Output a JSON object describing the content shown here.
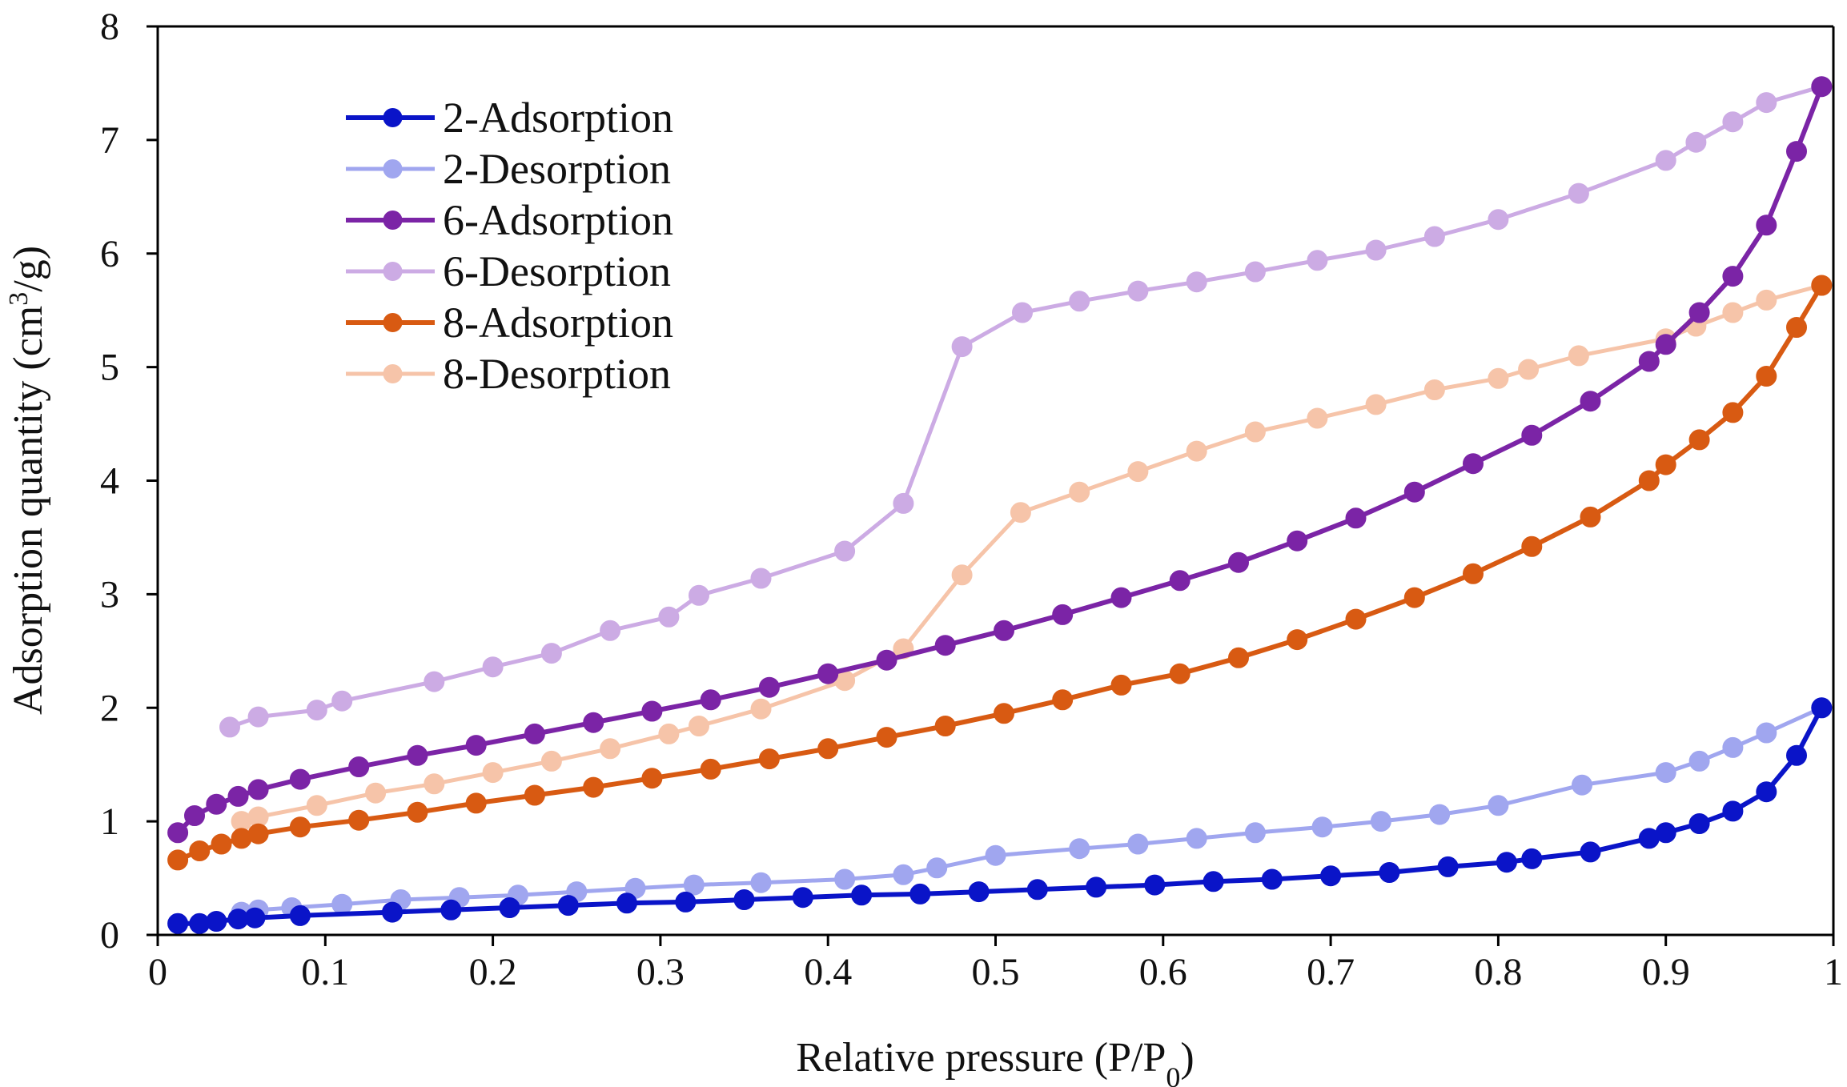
{
  "chart_data": {
    "type": "line",
    "xlabel": "Relative pressure (P/P",
    "xlabel_sub": "0",
    "xlabel_end": ")",
    "ylabel": "Adsorption quantity (cm",
    "ylabel_sup": "3",
    "ylabel_end": "/g)",
    "xlim": [
      0,
      1
    ],
    "ylim": [
      0,
      8
    ],
    "x_ticks": [
      "0",
      "0.1",
      "0.2",
      "0.3",
      "0.4",
      "0.5",
      "0.6",
      "0.7",
      "0.8",
      "0.9",
      "1"
    ],
    "y_ticks": [
      "0",
      "1",
      "2",
      "3",
      "4",
      "5",
      "6",
      "7",
      "8"
    ],
    "grid": false,
    "legend_position": "top-left",
    "series": [
      {
        "name": "2-Adsorption",
        "color": "#0a14c8",
        "style": "solid",
        "x": [
          0.012,
          0.025,
          0.035,
          0.048,
          0.058,
          0.085,
          0.14,
          0.175,
          0.21,
          0.245,
          0.28,
          0.315,
          0.35,
          0.385,
          0.42,
          0.455,
          0.49,
          0.525,
          0.56,
          0.595,
          0.63,
          0.665,
          0.7,
          0.735,
          0.77,
          0.805,
          0.82,
          0.855,
          0.89,
          0.9,
          0.92,
          0.94,
          0.96,
          0.978,
          0.993
        ],
        "y": [
          0.1,
          0.1,
          0.12,
          0.14,
          0.15,
          0.17,
          0.2,
          0.22,
          0.24,
          0.26,
          0.28,
          0.29,
          0.31,
          0.33,
          0.35,
          0.36,
          0.38,
          0.4,
          0.42,
          0.44,
          0.47,
          0.49,
          0.52,
          0.55,
          0.6,
          0.64,
          0.67,
          0.73,
          0.85,
          0.9,
          0.98,
          1.09,
          1.26,
          1.58,
          2.0
        ]
      },
      {
        "name": "2-Desorption",
        "color": "#6e78e8",
        "style": "faded",
        "x": [
          0.993,
          0.96,
          0.94,
          0.92,
          0.9,
          0.85,
          0.8,
          0.765,
          0.73,
          0.695,
          0.655,
          0.62,
          0.585,
          0.55,
          0.5,
          0.465,
          0.445,
          0.41,
          0.36,
          0.32,
          0.285,
          0.25,
          0.215,
          0.18,
          0.145,
          0.11,
          0.08,
          0.06,
          0.05
        ],
        "y": [
          2.0,
          1.78,
          1.65,
          1.53,
          1.43,
          1.32,
          1.14,
          1.06,
          1.0,
          0.95,
          0.9,
          0.85,
          0.8,
          0.76,
          0.7,
          0.59,
          0.53,
          0.49,
          0.46,
          0.44,
          0.41,
          0.38,
          0.35,
          0.33,
          0.31,
          0.27,
          0.24,
          0.22,
          0.2
        ]
      },
      {
        "name": "6-Adsorption",
        "color": "#7b24a6",
        "style": "solid",
        "x": [
          0.012,
          0.022,
          0.035,
          0.048,
          0.06,
          0.085,
          0.12,
          0.155,
          0.19,
          0.225,
          0.26,
          0.295,
          0.33,
          0.365,
          0.4,
          0.435,
          0.47,
          0.505,
          0.54,
          0.575,
          0.61,
          0.645,
          0.68,
          0.715,
          0.75,
          0.785,
          0.82,
          0.855,
          0.89,
          0.9,
          0.92,
          0.94,
          0.96,
          0.978,
          0.993
        ],
        "y": [
          0.9,
          1.05,
          1.15,
          1.22,
          1.28,
          1.37,
          1.48,
          1.58,
          1.67,
          1.77,
          1.87,
          1.97,
          2.07,
          2.18,
          2.3,
          2.42,
          2.55,
          2.68,
          2.82,
          2.97,
          3.12,
          3.28,
          3.47,
          3.67,
          3.9,
          4.15,
          4.4,
          4.7,
          5.05,
          5.2,
          5.48,
          5.8,
          6.25,
          6.9,
          7.47
        ]
      },
      {
        "name": "6-Desorption",
        "color": "#b27fd6",
        "style": "faded",
        "x": [
          0.993,
          0.96,
          0.94,
          0.918,
          0.9,
          0.848,
          0.8,
          0.762,
          0.727,
          0.692,
          0.655,
          0.62,
          0.585,
          0.55,
          0.516,
          0.48,
          0.445,
          0.41,
          0.36,
          0.323,
          0.305,
          0.27,
          0.235,
          0.2,
          0.165,
          0.11,
          0.095,
          0.06,
          0.043
        ],
        "y": [
          7.47,
          7.33,
          7.16,
          6.98,
          6.82,
          6.53,
          6.3,
          6.15,
          6.03,
          5.94,
          5.84,
          5.75,
          5.67,
          5.58,
          5.48,
          5.18,
          3.8,
          3.38,
          3.14,
          2.99,
          2.8,
          2.68,
          2.48,
          2.36,
          2.23,
          2.06,
          1.98,
          1.92,
          1.83
        ]
      },
      {
        "name": "8-Adsorption",
        "color": "#d85a12",
        "style": "solid",
        "x": [
          0.012,
          0.025,
          0.038,
          0.05,
          0.06,
          0.085,
          0.12,
          0.155,
          0.19,
          0.225,
          0.26,
          0.295,
          0.33,
          0.365,
          0.4,
          0.435,
          0.47,
          0.505,
          0.54,
          0.575,
          0.61,
          0.645,
          0.68,
          0.715,
          0.75,
          0.785,
          0.82,
          0.855,
          0.89,
          0.9,
          0.92,
          0.94,
          0.96,
          0.978,
          0.993
        ],
        "y": [
          0.66,
          0.74,
          0.8,
          0.85,
          0.89,
          0.95,
          1.01,
          1.08,
          1.16,
          1.23,
          1.3,
          1.38,
          1.46,
          1.55,
          1.64,
          1.74,
          1.84,
          1.95,
          2.07,
          2.2,
          2.3,
          2.44,
          2.6,
          2.78,
          2.97,
          3.18,
          3.42,
          3.68,
          4.0,
          4.14,
          4.36,
          4.6,
          4.92,
          5.35,
          5.72
        ]
      },
      {
        "name": "8-Desorption",
        "color": "#f2a67c",
        "style": "faded",
        "x": [
          0.993,
          0.96,
          0.94,
          0.918,
          0.9,
          0.848,
          0.818,
          0.8,
          0.762,
          0.727,
          0.692,
          0.655,
          0.62,
          0.585,
          0.55,
          0.515,
          0.48,
          0.445,
          0.41,
          0.36,
          0.323,
          0.305,
          0.27,
          0.235,
          0.2,
          0.165,
          0.13,
          0.095,
          0.06,
          0.05
        ],
        "y": [
          5.72,
          5.59,
          5.48,
          5.36,
          5.25,
          5.1,
          4.98,
          4.9,
          4.8,
          4.67,
          4.55,
          4.43,
          4.26,
          4.08,
          3.9,
          3.72,
          3.17,
          2.52,
          2.24,
          1.99,
          1.84,
          1.77,
          1.64,
          1.53,
          1.43,
          1.33,
          1.25,
          1.14,
          1.04,
          1.0
        ]
      }
    ]
  }
}
